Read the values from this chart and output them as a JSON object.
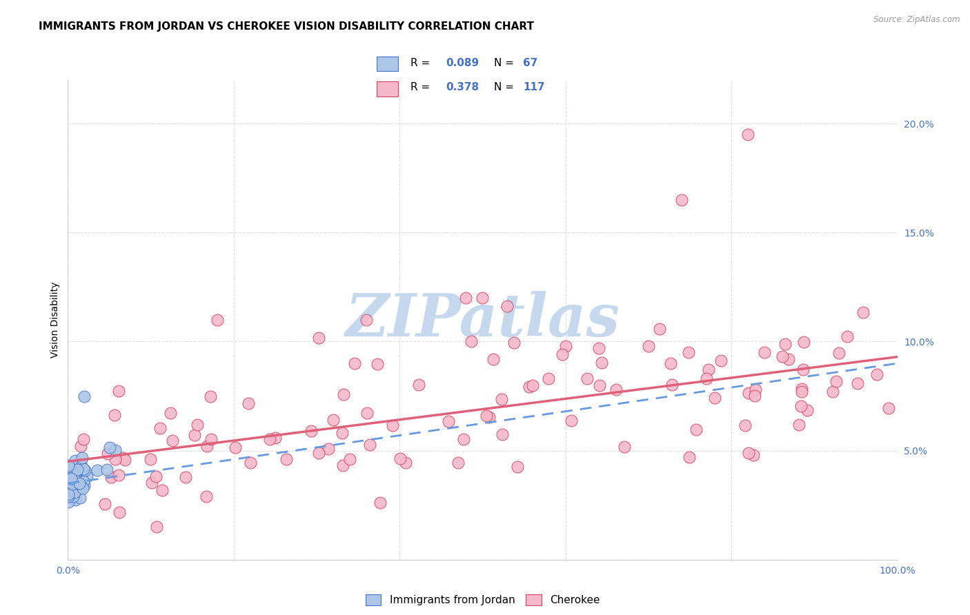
{
  "title": "IMMIGRANTS FROM JORDAN VS CHEROKEE VISION DISABILITY CORRELATION CHART",
  "source": "Source: ZipAtlas.com",
  "ylabel": "Vision Disability",
  "legend_r1": "R = 0.089",
  "legend_n1": "N = 67",
  "legend_r2": "R = 0.378",
  "legend_n2": "N = 117",
  "blue_color": "#adc6e8",
  "blue_line_color": "#5585c8",
  "blue_line_dash_color": "#6699dd",
  "pink_color": "#f5b8ca",
  "pink_line_color": "#e0607a",
  "blue_scatter_edge": "#4472c4",
  "pink_scatter_edge": "#d04060",
  "xlim": [
    0,
    100
  ],
  "ylim": [
    0,
    22
  ],
  "watermark": "ZIPatlas",
  "watermark_color": "#c5d8ee",
  "background_color": "#ffffff",
  "grid_color": "#dddddd",
  "title_fontsize": 11,
  "axis_label_fontsize": 10,
  "tick_fontsize": 10,
  "tick_color": "#4472c4",
  "pink_line_intercept": 4.5,
  "pink_line_slope": 0.048,
  "blue_line_intercept": 3.5,
  "blue_line_slope": 0.055
}
